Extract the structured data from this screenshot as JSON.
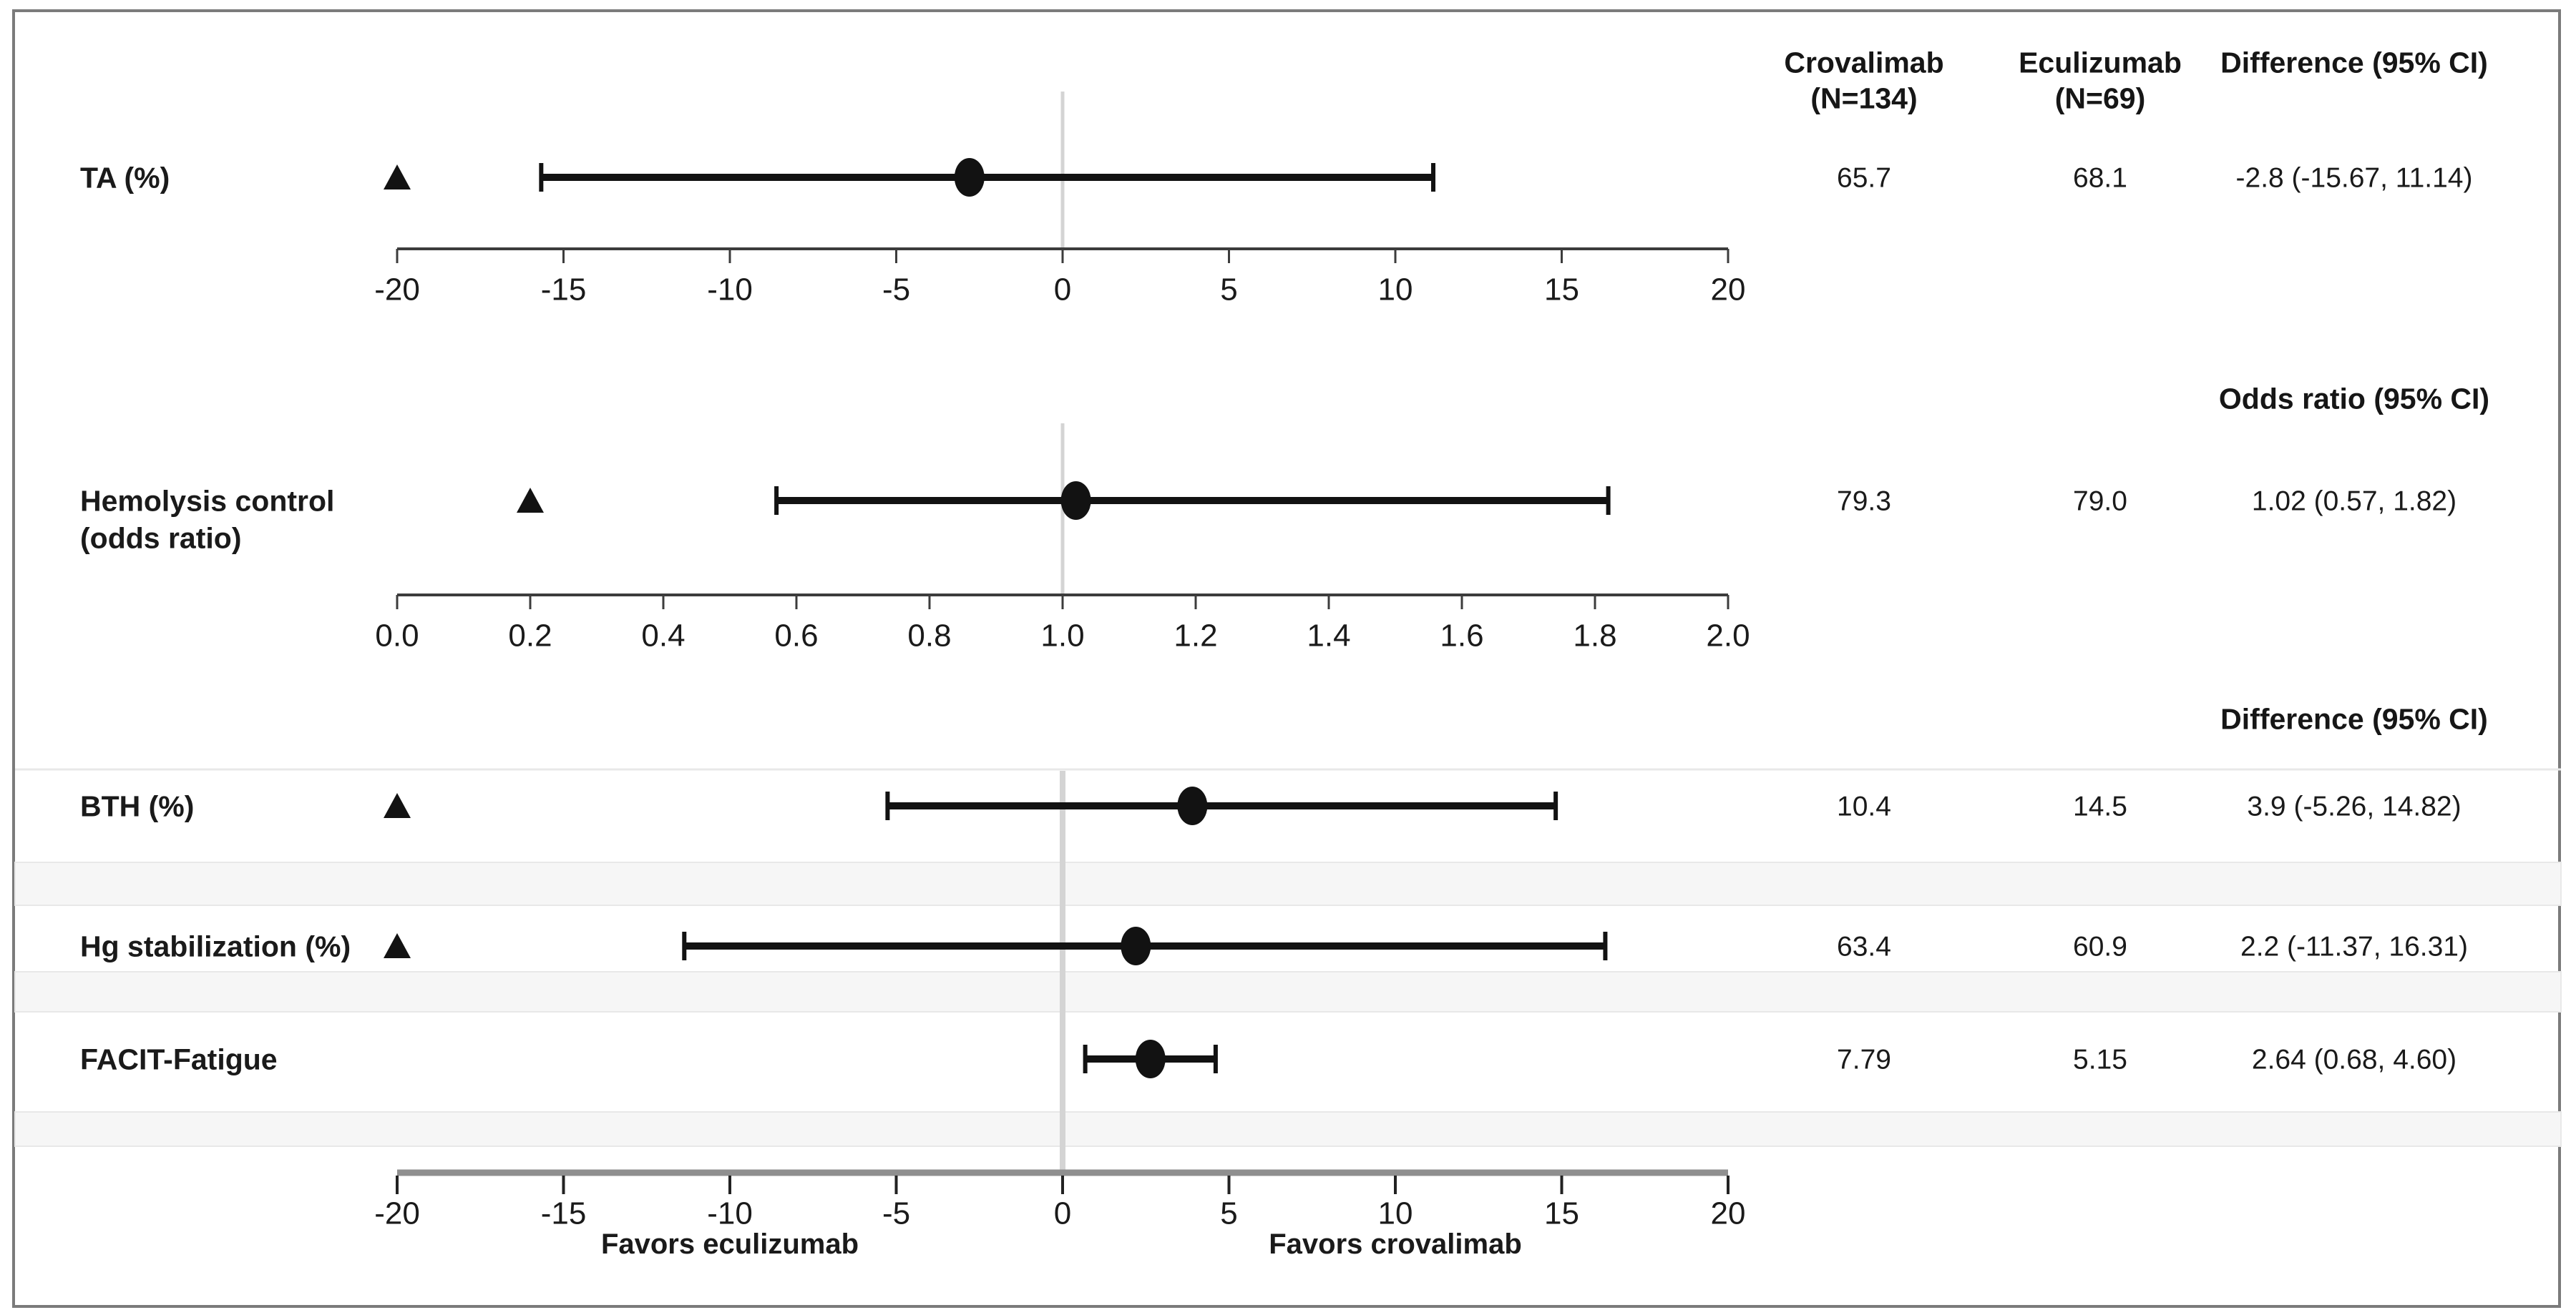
{
  "chart_data": {
    "type": "forest",
    "column_headers": {
      "crovalimab_line1": "Crovalimab",
      "crovalimab_line2": "(N=134)",
      "eculizumab_line1": "Eculizumab",
      "eculizumab_line2": "(N=69)"
    },
    "marker_legend": {
      "triangle": "non-inferiority margin",
      "circle": "point estimate",
      "line": "95% confidence interval"
    },
    "sections": [
      {
        "estimate_header": "Difference (95% CI)",
        "axis": {
          "min": -20,
          "max": 20,
          "ref": 0,
          "tick_labels": [
            "-20",
            "-15",
            "-10",
            "-5",
            "0",
            "5",
            "10",
            "15",
            "20"
          ]
        },
        "rows": [
          {
            "label": "TA (%)",
            "crovalimab": "65.7",
            "eculizumab": "68.1",
            "estimate_text": "-2.8 (-15.67, 11.14)",
            "point": -2.8,
            "ci": [
              -15.67,
              11.14
            ],
            "margin_triangle": -20
          }
        ]
      },
      {
        "estimate_header": "Odds ratio (95% CI)",
        "axis": {
          "min": 0,
          "max": 2,
          "ref": 1.0,
          "tick_labels": [
            "0.0",
            "0.2",
            "0.4",
            "0.6",
            "0.8",
            "1.0",
            "1.2",
            "1.4",
            "1.6",
            "1.8",
            "2.0"
          ]
        },
        "rows": [
          {
            "label": "Hemolysis control",
            "label2": "(odds ratio)",
            "crovalimab": "79.3",
            "eculizumab": "79.0",
            "estimate_text": "1.02 (0.57, 1.82)",
            "point": 1.02,
            "ci": [
              0.57,
              1.82
            ],
            "margin_triangle": 0.2
          }
        ]
      },
      {
        "estimate_header": "Difference (95% CI)",
        "axis": {
          "min": -20,
          "max": 20,
          "ref": 0,
          "tick_labels": [
            "-20",
            "-15",
            "-10",
            "-5",
            "0",
            "5",
            "10",
            "15",
            "20"
          ]
        },
        "favors_left": "Favors eculizumab",
        "favors_right": "Favors crovalimab",
        "rows": [
          {
            "label": "BTH (%)",
            "crovalimab": "10.4",
            "eculizumab": "14.5",
            "estimate_text": "3.9 (-5.26, 14.82)",
            "point": 3.9,
            "ci": [
              -5.26,
              14.82
            ],
            "margin_triangle": -20
          },
          {
            "label": "Hg stabilization (%)",
            "crovalimab": "63.4",
            "eculizumab": "60.9",
            "estimate_text": "2.2 (-11.37, 16.31)",
            "point": 2.2,
            "ci": [
              -11.37,
              16.31
            ],
            "margin_triangle": -20
          },
          {
            "label": "FACIT-Fatigue",
            "crovalimab": "7.79",
            "eculizumab": "5.15",
            "estimate_text": "2.64 (0.68, 4.60)",
            "point": 2.64,
            "ci": [
              0.68,
              4.6
            ],
            "margin_triangle": null
          }
        ]
      }
    ],
    "colors": {
      "marker": "#121212",
      "axis_dark": "#3c3c3c",
      "axis_bottom": "#8f8f8f",
      "reference_line": "#d4d4d4",
      "band": "#f6f6f6",
      "divider": "#e8e8e8",
      "border": "#7b7b7b",
      "text": "#1a1a1a"
    }
  }
}
